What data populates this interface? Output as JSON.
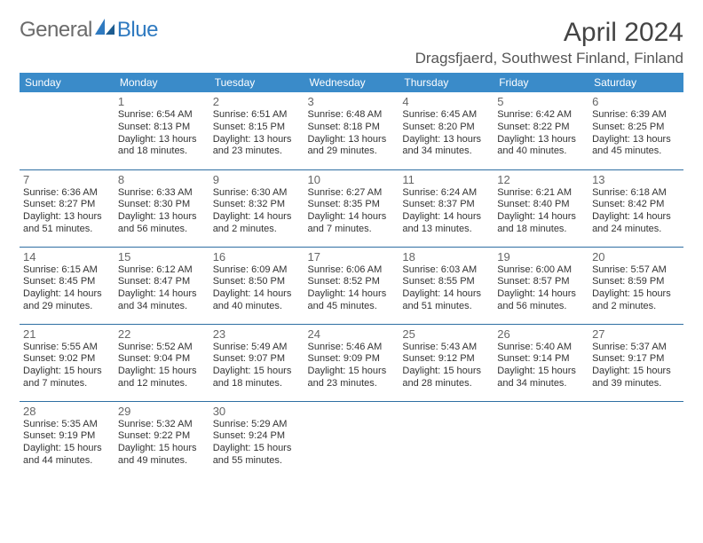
{
  "logo": {
    "word1": "General",
    "word2": "Blue",
    "logo_color": "#2f7ac0"
  },
  "title": "April 2024",
  "location": "Dragsfjaerd, Southwest Finland, Finland",
  "weekdays": [
    "Sunday",
    "Monday",
    "Tuesday",
    "Wednesday",
    "Thursday",
    "Friday",
    "Saturday"
  ],
  "styling": {
    "page_bg": "#ffffff",
    "header_row_bg": "#3a8bc9",
    "header_row_text": "#ffffff",
    "cell_border_color": "#2f6fa3",
    "daynum_color": "#666666",
    "body_text_color": "#333333",
    "title_color": "#444444",
    "location_color": "#555555",
    "font_family": "Arial",
    "weekday_fontsize_pt": 9,
    "daynum_fontsize_pt": 10,
    "body_fontsize_pt": 8.5,
    "title_fontsize_pt": 23,
    "cols": 7
  },
  "grid": [
    [
      null,
      {
        "n": "1",
        "l1": "Sunrise: 6:54 AM",
        "l2": "Sunset: 8:13 PM",
        "l3": "Daylight: 13 hours",
        "l4": "and 18 minutes."
      },
      {
        "n": "2",
        "l1": "Sunrise: 6:51 AM",
        "l2": "Sunset: 8:15 PM",
        "l3": "Daylight: 13 hours",
        "l4": "and 23 minutes."
      },
      {
        "n": "3",
        "l1": "Sunrise: 6:48 AM",
        "l2": "Sunset: 8:18 PM",
        "l3": "Daylight: 13 hours",
        "l4": "and 29 minutes."
      },
      {
        "n": "4",
        "l1": "Sunrise: 6:45 AM",
        "l2": "Sunset: 8:20 PM",
        "l3": "Daylight: 13 hours",
        "l4": "and 34 minutes."
      },
      {
        "n": "5",
        "l1": "Sunrise: 6:42 AM",
        "l2": "Sunset: 8:22 PM",
        "l3": "Daylight: 13 hours",
        "l4": "and 40 minutes."
      },
      {
        "n": "6",
        "l1": "Sunrise: 6:39 AM",
        "l2": "Sunset: 8:25 PM",
        "l3": "Daylight: 13 hours",
        "l4": "and 45 minutes."
      }
    ],
    [
      {
        "n": "7",
        "l1": "Sunrise: 6:36 AM",
        "l2": "Sunset: 8:27 PM",
        "l3": "Daylight: 13 hours",
        "l4": "and 51 minutes."
      },
      {
        "n": "8",
        "l1": "Sunrise: 6:33 AM",
        "l2": "Sunset: 8:30 PM",
        "l3": "Daylight: 13 hours",
        "l4": "and 56 minutes."
      },
      {
        "n": "9",
        "l1": "Sunrise: 6:30 AM",
        "l2": "Sunset: 8:32 PM",
        "l3": "Daylight: 14 hours",
        "l4": "and 2 minutes."
      },
      {
        "n": "10",
        "l1": "Sunrise: 6:27 AM",
        "l2": "Sunset: 8:35 PM",
        "l3": "Daylight: 14 hours",
        "l4": "and 7 minutes."
      },
      {
        "n": "11",
        "l1": "Sunrise: 6:24 AM",
        "l2": "Sunset: 8:37 PM",
        "l3": "Daylight: 14 hours",
        "l4": "and 13 minutes."
      },
      {
        "n": "12",
        "l1": "Sunrise: 6:21 AM",
        "l2": "Sunset: 8:40 PM",
        "l3": "Daylight: 14 hours",
        "l4": "and 18 minutes."
      },
      {
        "n": "13",
        "l1": "Sunrise: 6:18 AM",
        "l2": "Sunset: 8:42 PM",
        "l3": "Daylight: 14 hours",
        "l4": "and 24 minutes."
      }
    ],
    [
      {
        "n": "14",
        "l1": "Sunrise: 6:15 AM",
        "l2": "Sunset: 8:45 PM",
        "l3": "Daylight: 14 hours",
        "l4": "and 29 minutes."
      },
      {
        "n": "15",
        "l1": "Sunrise: 6:12 AM",
        "l2": "Sunset: 8:47 PM",
        "l3": "Daylight: 14 hours",
        "l4": "and 34 minutes."
      },
      {
        "n": "16",
        "l1": "Sunrise: 6:09 AM",
        "l2": "Sunset: 8:50 PM",
        "l3": "Daylight: 14 hours",
        "l4": "and 40 minutes."
      },
      {
        "n": "17",
        "l1": "Sunrise: 6:06 AM",
        "l2": "Sunset: 8:52 PM",
        "l3": "Daylight: 14 hours",
        "l4": "and 45 minutes."
      },
      {
        "n": "18",
        "l1": "Sunrise: 6:03 AM",
        "l2": "Sunset: 8:55 PM",
        "l3": "Daylight: 14 hours",
        "l4": "and 51 minutes."
      },
      {
        "n": "19",
        "l1": "Sunrise: 6:00 AM",
        "l2": "Sunset: 8:57 PM",
        "l3": "Daylight: 14 hours",
        "l4": "and 56 minutes."
      },
      {
        "n": "20",
        "l1": "Sunrise: 5:57 AM",
        "l2": "Sunset: 8:59 PM",
        "l3": "Daylight: 15 hours",
        "l4": "and 2 minutes."
      }
    ],
    [
      {
        "n": "21",
        "l1": "Sunrise: 5:55 AM",
        "l2": "Sunset: 9:02 PM",
        "l3": "Daylight: 15 hours",
        "l4": "and 7 minutes."
      },
      {
        "n": "22",
        "l1": "Sunrise: 5:52 AM",
        "l2": "Sunset: 9:04 PM",
        "l3": "Daylight: 15 hours",
        "l4": "and 12 minutes."
      },
      {
        "n": "23",
        "l1": "Sunrise: 5:49 AM",
        "l2": "Sunset: 9:07 PM",
        "l3": "Daylight: 15 hours",
        "l4": "and 18 minutes."
      },
      {
        "n": "24",
        "l1": "Sunrise: 5:46 AM",
        "l2": "Sunset: 9:09 PM",
        "l3": "Daylight: 15 hours",
        "l4": "and 23 minutes."
      },
      {
        "n": "25",
        "l1": "Sunrise: 5:43 AM",
        "l2": "Sunset: 9:12 PM",
        "l3": "Daylight: 15 hours",
        "l4": "and 28 minutes."
      },
      {
        "n": "26",
        "l1": "Sunrise: 5:40 AM",
        "l2": "Sunset: 9:14 PM",
        "l3": "Daylight: 15 hours",
        "l4": "and 34 minutes."
      },
      {
        "n": "27",
        "l1": "Sunrise: 5:37 AM",
        "l2": "Sunset: 9:17 PM",
        "l3": "Daylight: 15 hours",
        "l4": "and 39 minutes."
      }
    ],
    [
      {
        "n": "28",
        "l1": "Sunrise: 5:35 AM",
        "l2": "Sunset: 9:19 PM",
        "l3": "Daylight: 15 hours",
        "l4": "and 44 minutes."
      },
      {
        "n": "29",
        "l1": "Sunrise: 5:32 AM",
        "l2": "Sunset: 9:22 PM",
        "l3": "Daylight: 15 hours",
        "l4": "and 49 minutes."
      },
      {
        "n": "30",
        "l1": "Sunrise: 5:29 AM",
        "l2": "Sunset: 9:24 PM",
        "l3": "Daylight: 15 hours",
        "l4": "and 55 minutes."
      },
      null,
      null,
      null,
      null
    ]
  ]
}
